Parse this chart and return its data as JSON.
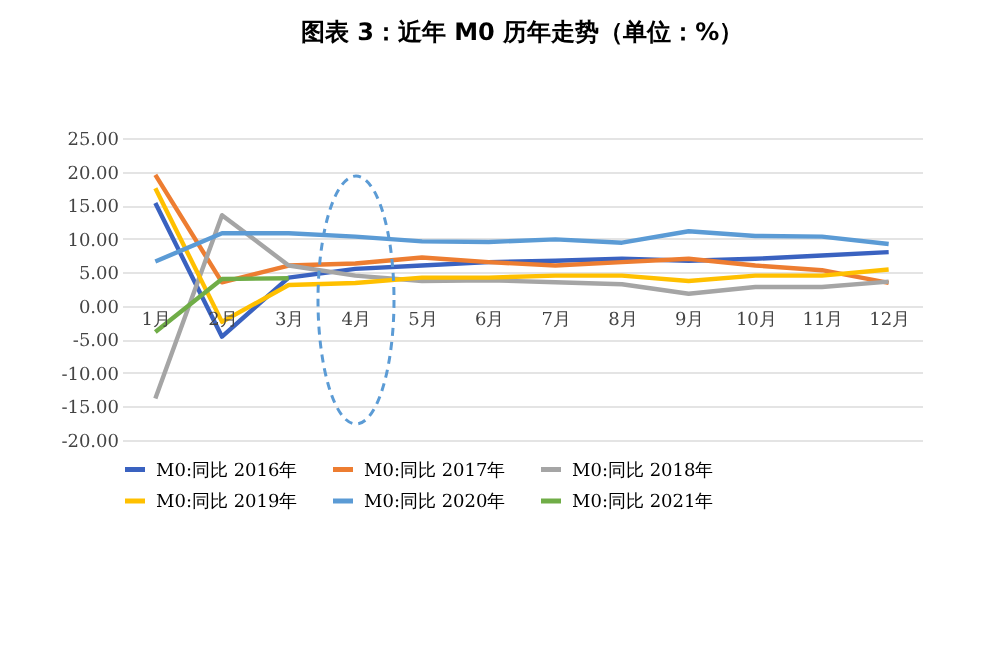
{
  "chart_data": {
    "type": "line",
    "title": "图表 3：近年 M0 历年走势（单位：%）",
    "categories": [
      "1月",
      "2月",
      "3月",
      "4月",
      "5月",
      "6月",
      "7月",
      "8月",
      "9月",
      "10月",
      "11月",
      "12月"
    ],
    "series": [
      {
        "name": "M0:同比 2016年",
        "color": "#3a62c0",
        "values": [
          15.3,
          -4.6,
          4.2,
          5.5,
          6.0,
          6.5,
          6.7,
          7.0,
          6.7,
          7.0,
          7.5,
          8.0
        ]
      },
      {
        "name": "M0:同比 2017年",
        "color": "#ed7d31",
        "values": [
          19.5,
          3.5,
          6.0,
          6.3,
          7.2,
          6.5,
          6.0,
          6.5,
          7.0,
          6.0,
          5.3,
          3.4
        ]
      },
      {
        "name": "M0:同比 2018年",
        "color": "#a5a5a5",
        "values": [
          -13.8,
          13.5,
          6.0,
          4.5,
          3.7,
          3.8,
          3.5,
          3.2,
          1.8,
          2.8,
          2.8,
          3.6
        ]
      },
      {
        "name": "M0:同比 2019年",
        "color": "#ffc000",
        "values": [
          17.5,
          -2.4,
          3.1,
          3.4,
          4.2,
          4.2,
          4.5,
          4.5,
          3.7,
          4.5,
          4.5,
          5.4
        ]
      },
      {
        "name": "M0:同比 2020年",
        "color": "#5b9bd5",
        "values": [
          6.6,
          10.8,
          10.8,
          10.3,
          9.6,
          9.5,
          9.9,
          9.4,
          11.1,
          10.4,
          10.3,
          9.2
        ]
      },
      {
        "name": "M0:同比 2021年",
        "color": "#70ad47",
        "values": [
          -3.9,
          4.0,
          4.1,
          null,
          null,
          null,
          null,
          null,
          null,
          null,
          null,
          null
        ]
      }
    ],
    "ylim": [
      -20,
      25
    ],
    "yticks": [
      {
        "value": -20,
        "label": "-20.00"
      },
      {
        "value": -15,
        "label": "-15.00"
      },
      {
        "value": -10,
        "label": "-10.00"
      },
      {
        "value": -5,
        "label": "-5.00"
      },
      {
        "value": 0,
        "label": "0.00"
      },
      {
        "value": 5,
        "label": "5.00"
      },
      {
        "value": 10,
        "label": "10.00"
      },
      {
        "value": 15,
        "label": "15.00"
      },
      {
        "value": 20,
        "label": "20.00"
      },
      {
        "value": 25,
        "label": "25.00"
      }
    ],
    "grid": "y",
    "legend": "bottom",
    "marker": "none",
    "line_style": "solid"
  }
}
